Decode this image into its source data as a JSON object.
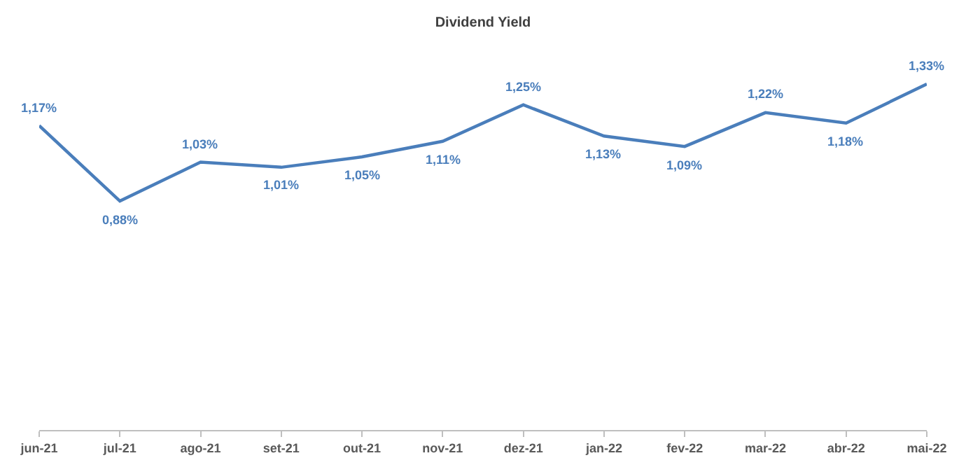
{
  "chart_data": {
    "type": "line",
    "title": "Dividend Yield",
    "categories": [
      "jun-21",
      "jul-21",
      "ago-21",
      "set-21",
      "out-21",
      "nov-21",
      "dez-21",
      "jan-22",
      "fev-22",
      "mar-22",
      "abr-22",
      "mai-22"
    ],
    "series": [
      {
        "color": "#4a7ebb",
        "values": [
          1.17,
          0.88,
          1.03,
          1.01,
          1.05,
          1.11,
          1.25,
          1.13,
          1.09,
          1.22,
          1.18,
          1.33
        ],
        "value_labels": [
          "1,17%",
          "0,88%",
          "1,03%",
          "1,01%",
          "1,05%",
          "1,11%",
          "1,25%",
          "1,13%",
          "1,09%",
          "1,22%",
          "1,18%",
          "1,33%"
        ]
      }
    ],
    "legend": false,
    "marker": "none"
  }
}
